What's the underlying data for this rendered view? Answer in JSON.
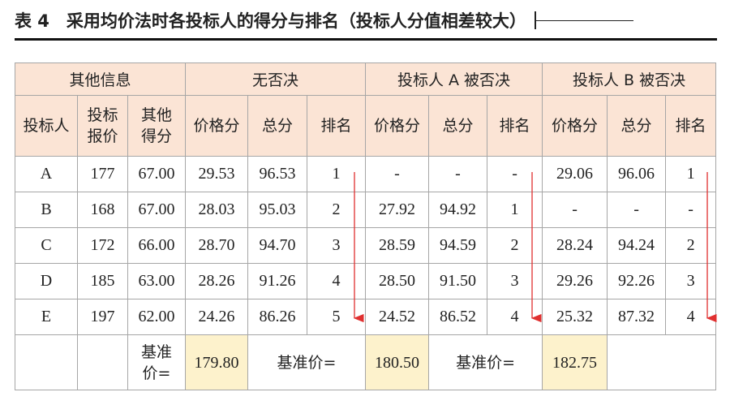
{
  "title": "表 4　采用均价法时各投标人的得分与排名（投标人分值相差较大）",
  "table": {
    "group_headers": [
      "其他信息",
      "无否决",
      "投标人 A 被否决",
      "投标人 B 被否决"
    ],
    "column_headers": [
      "投标人",
      "投标报价",
      "其他得分",
      "价格分",
      "总分",
      "排名",
      "价格分",
      "总分",
      "排名",
      "价格分",
      "总分",
      "排名"
    ],
    "rows": [
      [
        "A",
        "177",
        "67.00",
        "29.53",
        "96.53",
        "1",
        "-",
        "-",
        "-",
        "29.06",
        "96.06",
        "1"
      ],
      [
        "B",
        "168",
        "67.00",
        "28.03",
        "95.03",
        "2",
        "27.92",
        "94.92",
        "1",
        "-",
        "-",
        "-"
      ],
      [
        "C",
        "172",
        "66.00",
        "28.70",
        "94.70",
        "3",
        "28.59",
        "94.59",
        "2",
        "28.24",
        "94.24",
        "2"
      ],
      [
        "D",
        "185",
        "63.00",
        "28.26",
        "91.26",
        "4",
        "28.50",
        "91.50",
        "3",
        "29.26",
        "92.26",
        "3"
      ],
      [
        "E",
        "197",
        "62.00",
        "24.26",
        "86.26",
        "5",
        "24.52",
        "86.52",
        "4",
        "25.32",
        "87.32",
        "4"
      ]
    ],
    "footer": [
      "基准价=",
      "179.80",
      "基准价=",
      "180.50",
      "基准价=",
      "182.75"
    ]
  }
}
